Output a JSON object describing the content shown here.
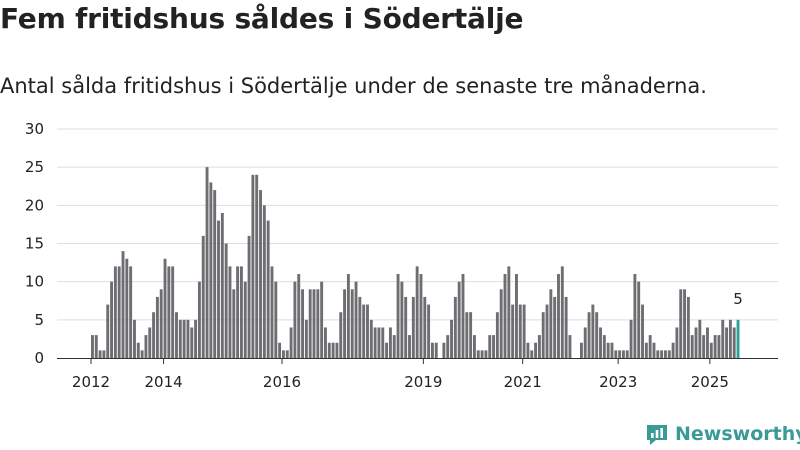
{
  "header": {
    "title": "Fem fritidshus såldes i Södertälje",
    "subtitle": "Antal sålda fritidshus i Södertälje under de senaste tre månaderna."
  },
  "brand": {
    "name": "Newsworthy",
    "icon": "newsworthy-logo-icon",
    "color": "#3a9a96"
  },
  "chart_data": {
    "type": "bar",
    "title": "Fem fritidshus såldes i Södertälje",
    "subtitle": "Antal sålda fritidshus i Södertälje under de senaste tre månaderna.",
    "x_ticks": [
      "2012",
      "2014",
      "2016",
      "2019",
      "2021",
      "2023",
      "2025"
    ],
    "y_ticks": [
      0,
      5,
      10,
      15,
      20,
      25,
      30
    ],
    "ylim": [
      0,
      30
    ],
    "grid": true,
    "legend": "none",
    "bar_color": "#6e6e72",
    "highlight_color": "#2aa198",
    "highlight_label": "5",
    "values": [
      3,
      3,
      1,
      1,
      7,
      10,
      12,
      12,
      14,
      13,
      12,
      5,
      2,
      1,
      3,
      4,
      6,
      8,
      9,
      13,
      12,
      12,
      6,
      5,
      5,
      5,
      4,
      5,
      10,
      16,
      25,
      23,
      22,
      18,
      19,
      15,
      12,
      9,
      12,
      12,
      10,
      16,
      24,
      24,
      22,
      20,
      18,
      12,
      10,
      2,
      1,
      1,
      4,
      10,
      11,
      9,
      5,
      9,
      9,
      9,
      10,
      4,
      2,
      2,
      2,
      6,
      9,
      11,
      9,
      10,
      8,
      7,
      7,
      5,
      4,
      4,
      4,
      2,
      4,
      3,
      11,
      10,
      8,
      3,
      8,
      12,
      11,
      8,
      7,
      2,
      2,
      0,
      2,
      3,
      5,
      8,
      10,
      11,
      6,
      6,
      3,
      1,
      1,
      1,
      3,
      3,
      6,
      9,
      11,
      12,
      7,
      11,
      7,
      7,
      2,
      1,
      2,
      3,
      6,
      7,
      9,
      8,
      11,
      12,
      8,
      3,
      0,
      0,
      2,
      4,
      6,
      7,
      6,
      4,
      3,
      2,
      2,
      1,
      1,
      1,
      1,
      5,
      11,
      10,
      7,
      2,
      3,
      2,
      1,
      1,
      1,
      1,
      2,
      4,
      9,
      9,
      8,
      3,
      4,
      5,
      3,
      4,
      2,
      3,
      3,
      5,
      4,
      5,
      4,
      5
    ]
  }
}
